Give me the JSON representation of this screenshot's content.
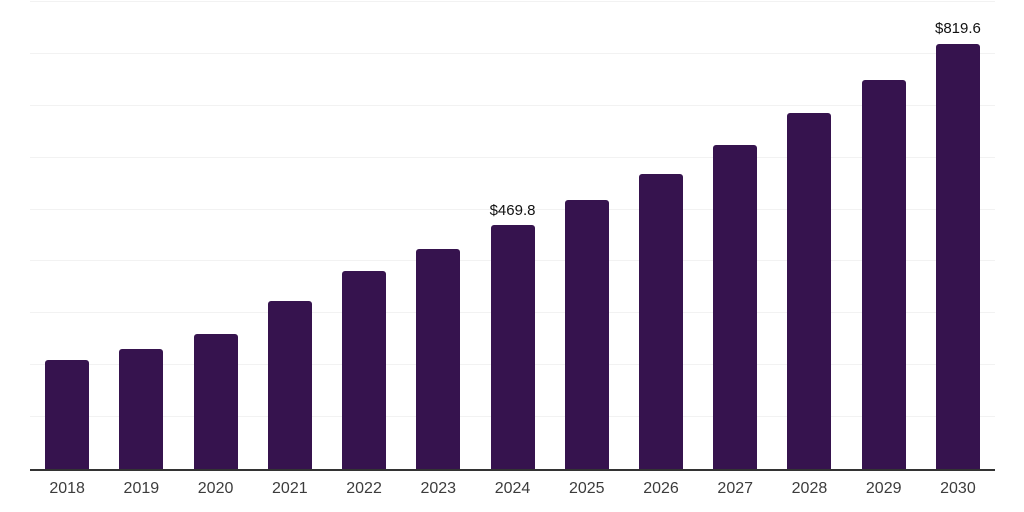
{
  "chart_data": {
    "type": "bar",
    "title": "",
    "xlabel": "",
    "ylabel": "",
    "categories": [
      "2018",
      "2019",
      "2020",
      "2021",
      "2022",
      "2023",
      "2024",
      "2025",
      "2026",
      "2027",
      "2028",
      "2029",
      "2030"
    ],
    "values": [
      210,
      232,
      260,
      324,
      382,
      424,
      469.8,
      518,
      569,
      625,
      686,
      749,
      819.6
    ],
    "value_labels": [
      "",
      "",
      "",
      "",
      "",
      "",
      "$469.8",
      "",
      "",
      "",
      "",
      "",
      "$819.6"
    ],
    "ylim": [
      0,
      900
    ],
    "gridline_step": 100,
    "grid": true,
    "legend": false,
    "y_tick_labels_shown": false,
    "colors": {
      "bar": "#36134e",
      "axis_line": "#333333",
      "gridline": "#f2f2f2",
      "tick_label": "#3c3c3c",
      "data_label": "#111111",
      "background": "#ffffff"
    }
  }
}
